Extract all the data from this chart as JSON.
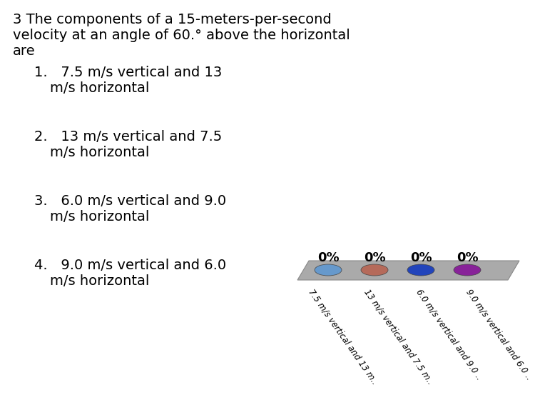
{
  "title_line1": "3 The components of a 15-meters-per-second",
  "title_line2": "velocity at an angle of 60.° above the horizontal",
  "title_line3": "are",
  "items_line1": [
    "1.   7.5 m/s vertical and 13",
    "2.   13 m/s vertical and 7.5",
    "3.   6.0 m/s vertical and 9.0",
    "4.   9.0 m/s vertical and 6.0"
  ],
  "items_line2": [
    "m/s horizontal",
    "m/s horizontal",
    "m/s horizontal",
    "m/s horizontal"
  ],
  "poll_labels": [
    "0%",
    "0%",
    "0%",
    "0%"
  ],
  "poll_options": [
    "7.5 m/s vertical and 13 m..",
    "13 m/s vertical and 7.5 m..",
    "6.0 m/s vertical and 9.0 ..",
    "9.0 m/s vertical and 6.0 .."
  ],
  "dot_colors": [
    "#6699cc",
    "#b56a5a",
    "#2244bb",
    "#882299"
  ],
  "bar_color": "#aaaaaa",
  "background_color": "#ffffff",
  "text_color": "#000000",
  "title_fontsize": 14,
  "item_fontsize": 14,
  "percent_fontsize": 13,
  "option_fontsize": 8.5
}
